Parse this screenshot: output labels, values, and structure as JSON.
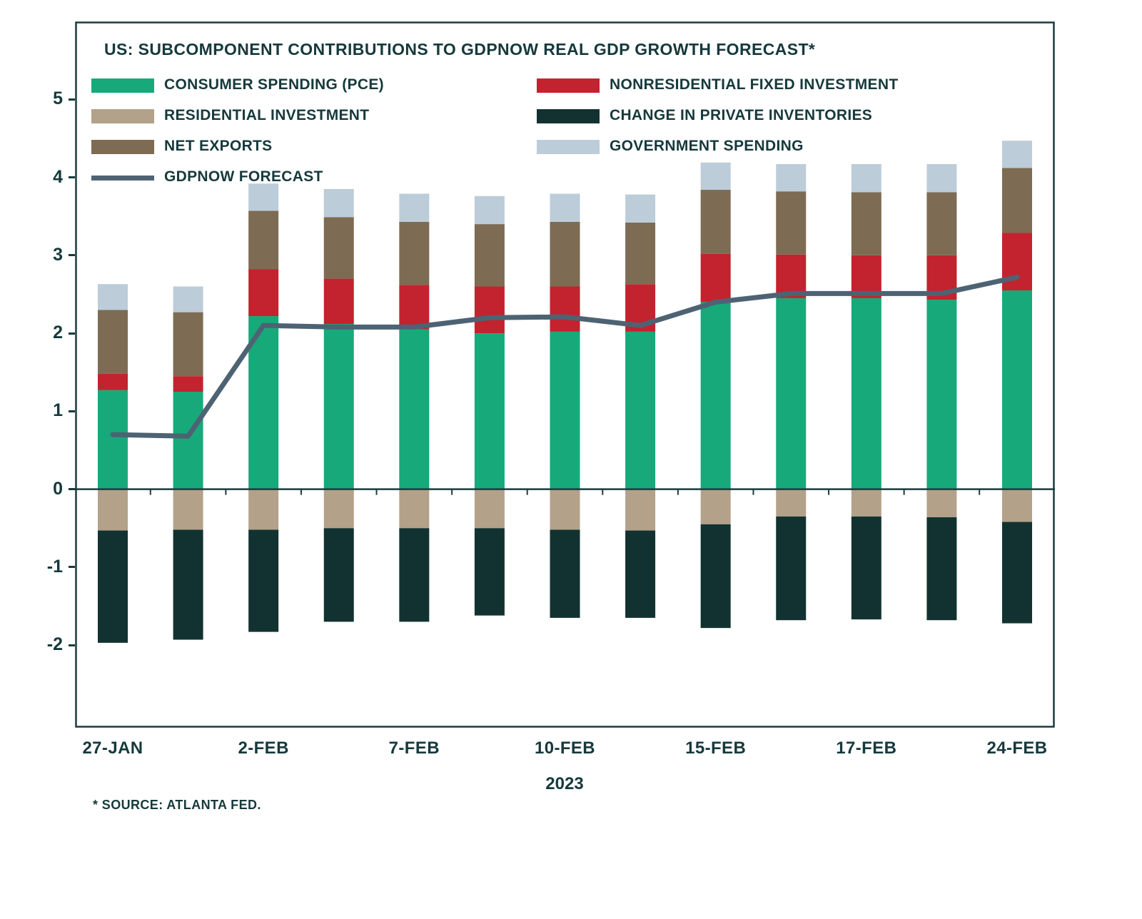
{
  "chart": {
    "title": "US: SUBCOMPONENT CONTRIBUTIONS TO GDPNOW REAL GDP GROWTH FORECAST*",
    "year_label": "2023",
    "source_note": "* SOURCE: ATLANTA FED."
  },
  "colors": {
    "text": "#16393C",
    "axis": "#1B3B3D",
    "background": "#FFFFFF",
    "consumer_spending": "#17A97A",
    "nonresidential_fixed_investment": "#C2232E",
    "residential_investment": "#B3A18A",
    "change_in_private_inventories": "#123231",
    "net_exports": "#7D6B53",
    "government_spending": "#BCCCD9",
    "gdpnow_forecast_line": "#4D6373"
  },
  "legend": {
    "left": [
      {
        "label": "CONSUMER SPENDING (PCE)",
        "color": "#17A97A",
        "shape": "rect"
      },
      {
        "label": "RESIDENTIAL INVESTMENT",
        "color": "#B3A18A",
        "shape": "rect"
      },
      {
        "label": "NET EXPORTS",
        "color": "#7D6B53",
        "shape": "rect"
      },
      {
        "label": "GDPNOW FORECAST",
        "color": "#4D6373",
        "shape": "line"
      }
    ],
    "right": [
      {
        "label": "NONRESIDENTIAL FIXED INVESTMENT",
        "color": "#C2232E",
        "shape": "rect"
      },
      {
        "label": "CHANGE IN PRIVATE INVENTORIES",
        "color": "#123231",
        "shape": "rect"
      },
      {
        "label": "GOVERNMENT SPENDING",
        "color": "#BCCCD9",
        "shape": "rect"
      }
    ]
  },
  "chart_data": {
    "type": "bar",
    "subtype": "stacked-bars-with-line",
    "title": "US: SUBCOMPONENT CONTRIBUTIONS TO GDPNOW REAL GDP GROWTH FORECAST*",
    "xlabel": "2023",
    "ylabel": "",
    "grid": false,
    "legend_position": "top-left",
    "ylim": [
      -3.06,
      6.0
    ],
    "y_ticks": [
      -2,
      -1,
      0,
      1,
      2,
      3,
      4,
      5
    ],
    "categories": [
      "27-JAN",
      "",
      "2-FEB",
      "",
      "7-FEB",
      "",
      "10-FEB",
      "",
      "15-FEB",
      "",
      "17-FEB",
      "",
      "24-FEB"
    ],
    "x_tick_labels": [
      "27-JAN",
      "2-FEB",
      "7-FEB",
      "10-FEB",
      "15-FEB",
      "17-FEB",
      "24-FEB"
    ],
    "x_tick_indices": [
      0,
      2,
      4,
      6,
      8,
      10,
      12
    ],
    "stack_order_positive": [
      "consumer_spending",
      "nonresidential_fixed_investment",
      "net_exports",
      "government_spending"
    ],
    "stack_order_negative": [
      "residential_investment",
      "change_in_private_inventories"
    ],
    "series": [
      {
        "key": "consumer_spending",
        "name": "CONSUMER SPENDING (PCE)",
        "color": "#17A97A",
        "values": [
          1.27,
          1.25,
          2.22,
          2.12,
          2.05,
          2.0,
          2.02,
          2.02,
          2.4,
          2.45,
          2.45,
          2.43,
          2.55
        ]
      },
      {
        "key": "nonresidential_fixed_investment",
        "name": "NONRESIDENTIAL FIXED INVESTMENT",
        "color": "#C2232E",
        "values": [
          0.21,
          0.2,
          0.6,
          0.58,
          0.57,
          0.6,
          0.58,
          0.61,
          0.62,
          0.56,
          0.55,
          0.57,
          0.74
        ]
      },
      {
        "key": "residential_investment",
        "name": "RESIDENTIAL INVESTMENT",
        "color": "#B3A18A",
        "values": [
          -0.53,
          -0.52,
          -0.52,
          -0.5,
          -0.5,
          -0.5,
          -0.52,
          -0.53,
          -0.45,
          -0.35,
          -0.35,
          -0.36,
          -0.42
        ]
      },
      {
        "key": "change_in_private_inventories",
        "name": "CHANGE IN PRIVATE INVENTORIES",
        "color": "#123231",
        "values": [
          -1.44,
          -1.41,
          -1.31,
          -1.2,
          -1.2,
          -1.12,
          -1.13,
          -1.12,
          -1.33,
          -1.33,
          -1.32,
          -1.32,
          -1.3
        ]
      },
      {
        "key": "net_exports",
        "name": "NET EXPORTS",
        "color": "#7D6B53",
        "values": [
          0.82,
          0.82,
          0.75,
          0.79,
          0.81,
          0.8,
          0.83,
          0.79,
          0.82,
          0.81,
          0.81,
          0.81,
          0.83
        ]
      },
      {
        "key": "government_spending",
        "name": "GOVERNMENT SPENDING",
        "color": "#BCCCD9",
        "values": [
          0.33,
          0.33,
          0.35,
          0.36,
          0.36,
          0.36,
          0.36,
          0.36,
          0.35,
          0.35,
          0.36,
          0.36,
          0.35
        ]
      }
    ],
    "line_series": {
      "key": "gdpnow_forecast",
      "name": "GDPNOW FORECAST",
      "color": "#4D6373",
      "values": [
        0.7,
        0.68,
        2.1,
        2.08,
        2.08,
        2.2,
        2.21,
        2.1,
        2.4,
        2.51,
        2.51,
        2.51,
        2.72
      ]
    }
  }
}
